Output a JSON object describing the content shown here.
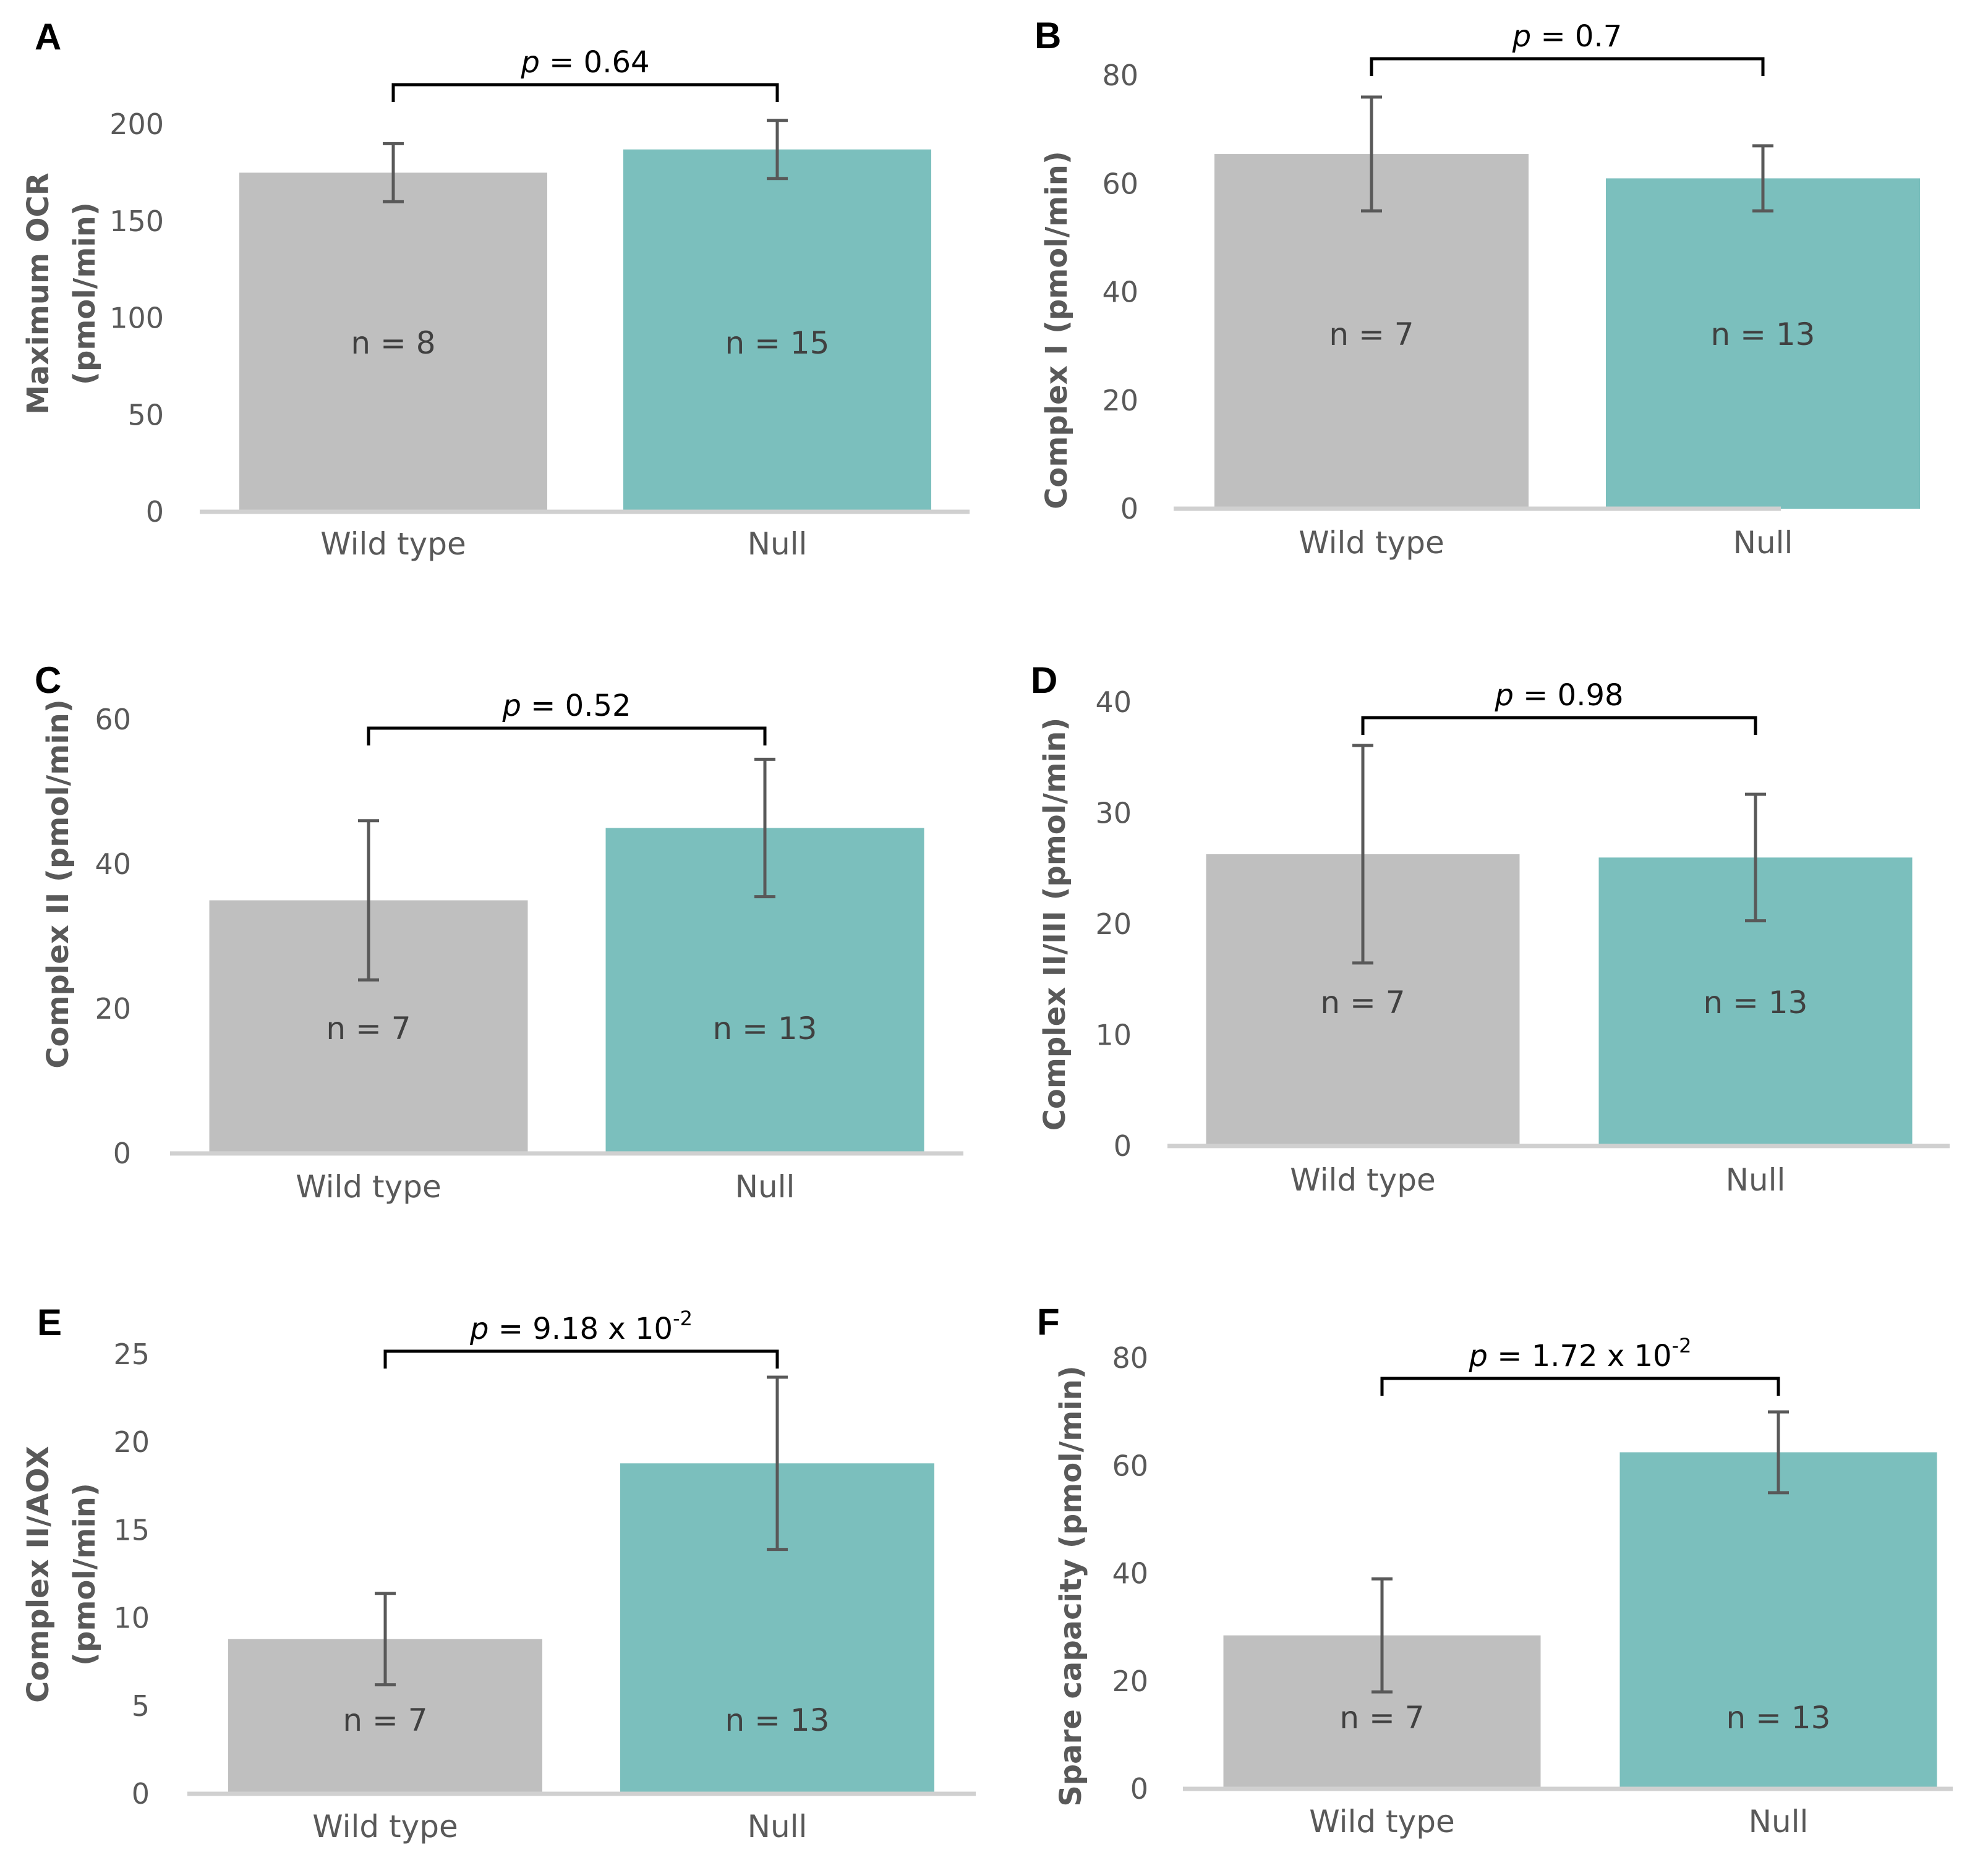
{
  "chart_data": [
    {
      "type": "bar",
      "panel": "A",
      "ylabel": [
        "Maximum OCR",
        "(pmol/min)"
      ],
      "categories": [
        "Wild type",
        "Null"
      ],
      "values": [
        175,
        187
      ],
      "errors": [
        15,
        15
      ],
      "n_labels": [
        "n = 8",
        "n = 15"
      ],
      "ylim": [
        0,
        200
      ],
      "yticks": [
        0,
        50,
        100,
        150,
        200
      ],
      "p_label": {
        "p": "p",
        "rest": " = 0.64",
        "sup": ""
      },
      "colors": [
        "#bfbfbf",
        "#7bbfbd"
      ]
    },
    {
      "type": "bar",
      "panel": "B",
      "ylabel": [
        "Complex I (pmol/min)"
      ],
      "categories": [
        "Wild type",
        "Null"
      ],
      "values": [
        65.5,
        61
      ],
      "errors": [
        10.5,
        6
      ],
      "n_labels": [
        "n = 7",
        "n = 13"
      ],
      "ylim": [
        0,
        80
      ],
      "yticks": [
        0,
        20,
        40,
        60,
        80
      ],
      "p_label": {
        "p": "p",
        "rest": " = 0.7",
        "sup": ""
      },
      "colors": [
        "#bfbfbf",
        "#7bbfbd"
      ]
    },
    {
      "type": "bar",
      "panel": "C",
      "ylabel": [
        "Complex II (pmol/min)"
      ],
      "categories": [
        "Wild type",
        "Null"
      ],
      "values": [
        35,
        45
      ],
      "errors": [
        11,
        9.5
      ],
      "n_labels": [
        "n = 7",
        "n = 13"
      ],
      "ylim": [
        0,
        60
      ],
      "yticks": [
        0,
        20,
        40,
        60
      ],
      "p_label": {
        "p": "p",
        "rest": " = 0.52",
        "sup": ""
      },
      "colors": [
        "#bfbfbf",
        "#7bbfbd"
      ]
    },
    {
      "type": "bar",
      "panel": "D",
      "ylabel": [
        "Complex II/III (pmol/min)"
      ],
      "categories": [
        "Wild type",
        "Null"
      ],
      "values": [
        26.3,
        26
      ],
      "errors": [
        9.8,
        5.7
      ],
      "n_labels": [
        "n = 7",
        "n = 13"
      ],
      "ylim": [
        0,
        40
      ],
      "yticks": [
        0,
        10,
        20,
        30,
        40
      ],
      "p_label": {
        "p": "p",
        "rest": " = 0.98",
        "sup": ""
      },
      "colors": [
        "#bfbfbf",
        "#7bbfbd"
      ]
    },
    {
      "type": "bar",
      "panel": "E",
      "ylabel": [
        "Complex II/AOX",
        "(pmol/min)"
      ],
      "categories": [
        "Wild type",
        "Null"
      ],
      "values": [
        8.8,
        18.8
      ],
      "errors": [
        2.6,
        4.9
      ],
      "n_labels": [
        "n = 7",
        "n = 13"
      ],
      "ylim": [
        0,
        25
      ],
      "yticks": [
        0,
        5,
        10,
        15,
        20,
        25
      ],
      "p_label": {
        "p": "p",
        "rest": " = 9.18 x 10",
        "sup": "-2"
      },
      "colors": [
        "#bfbfbf",
        "#7bbfbd"
      ]
    },
    {
      "type": "bar",
      "panel": "F",
      "ylabel": [
        "Spare capacity (pmol/min)"
      ],
      "categories": [
        "Wild type",
        "Null"
      ],
      "values": [
        28.5,
        62.5
      ],
      "errors": [
        10.5,
        7.5
      ],
      "n_labels": [
        "n = 7",
        "n = 13"
      ],
      "ylim": [
        0,
        80
      ],
      "yticks": [
        0,
        20,
        40,
        60,
        80
      ],
      "p_label": {
        "p": "p",
        "rest": " = 1.72 x 10",
        "sup": "-2"
      },
      "colors": [
        "#bfbfbf",
        "#7bbfbd"
      ]
    }
  ]
}
